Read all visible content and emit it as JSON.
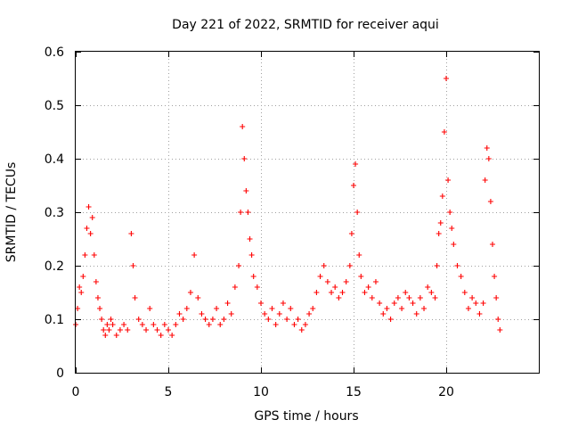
{
  "chart_data": {
    "type": "scatter",
    "title": "Day 221 of 2022, SRMTID for receiver aqui",
    "xlabel": "GPS time / hours",
    "ylabel": "SRMTID / TECUs",
    "xlim": [
      0,
      25
    ],
    "ylim": [
      0,
      0.6
    ],
    "x_ticks": [
      0,
      5,
      10,
      15,
      20
    ],
    "x_tick_labels": [
      "0",
      "5",
      "10",
      "15",
      "20"
    ],
    "y_ticks": [
      0,
      0.1,
      0.2,
      0.3,
      0.4,
      0.5,
      0.6
    ],
    "y_tick_labels": [
      "0",
      "0.1",
      "0.2",
      "0.3",
      "0.4",
      "0.5",
      "0.6"
    ],
    "grid": true,
    "marker": "plus",
    "color": "#ff0000",
    "series": [
      {
        "name": "SRMTID",
        "x": [
          0.0,
          0.1,
          0.2,
          0.3,
          0.4,
          0.5,
          0.6,
          0.7,
          0.8,
          0.9,
          1.0,
          1.1,
          1.2,
          1.3,
          1.4,
          1.5,
          1.6,
          1.7,
          1.8,
          1.9,
          2.0,
          2.2,
          2.4,
          2.6,
          2.8,
          3.0,
          3.1,
          3.2,
          3.4,
          3.6,
          3.8,
          4.0,
          4.2,
          4.4,
          4.6,
          4.8,
          5.0,
          5.2,
          5.4,
          5.6,
          5.8,
          6.0,
          6.2,
          6.4,
          6.6,
          6.8,
          7.0,
          7.2,
          7.4,
          7.6,
          7.8,
          8.0,
          8.2,
          8.4,
          8.6,
          8.8,
          8.9,
          9.0,
          9.1,
          9.2,
          9.3,
          9.4,
          9.5,
          9.6,
          9.8,
          10.0,
          10.2,
          10.4,
          10.6,
          10.8,
          11.0,
          11.2,
          11.4,
          11.6,
          11.8,
          12.0,
          12.2,
          12.4,
          12.6,
          12.8,
          13.0,
          13.2,
          13.4,
          13.6,
          13.8,
          14.0,
          14.2,
          14.4,
          14.6,
          14.8,
          14.9,
          15.0,
          15.1,
          15.2,
          15.3,
          15.4,
          15.6,
          15.8,
          16.0,
          16.2,
          16.4,
          16.6,
          16.8,
          17.0,
          17.2,
          17.4,
          17.6,
          17.8,
          18.0,
          18.2,
          18.4,
          18.6,
          18.8,
          19.0,
          19.2,
          19.4,
          19.5,
          19.6,
          19.7,
          19.8,
          19.9,
          20.0,
          20.1,
          20.2,
          20.3,
          20.4,
          20.6,
          20.8,
          21.0,
          21.2,
          21.4,
          21.6,
          21.8,
          22.0,
          22.1,
          22.2,
          22.3,
          22.4,
          22.5,
          22.6,
          22.7,
          22.8,
          22.9
        ],
        "y": [
          0.09,
          0.12,
          0.16,
          0.15,
          0.18,
          0.22,
          0.27,
          0.31,
          0.26,
          0.29,
          0.22,
          0.17,
          0.14,
          0.12,
          0.1,
          0.08,
          0.07,
          0.09,
          0.08,
          0.1,
          0.09,
          0.07,
          0.08,
          0.09,
          0.08,
          0.26,
          0.2,
          0.14,
          0.1,
          0.09,
          0.08,
          0.12,
          0.09,
          0.08,
          0.07,
          0.09,
          0.08,
          0.07,
          0.09,
          0.11,
          0.1,
          0.12,
          0.15,
          0.22,
          0.14,
          0.11,
          0.1,
          0.09,
          0.1,
          0.12,
          0.09,
          0.1,
          0.13,
          0.11,
          0.16,
          0.2,
          0.3,
          0.46,
          0.4,
          0.34,
          0.3,
          0.25,
          0.22,
          0.18,
          0.16,
          0.13,
          0.11,
          0.1,
          0.12,
          0.09,
          0.11,
          0.13,
          0.1,
          0.12,
          0.09,
          0.1,
          0.08,
          0.09,
          0.11,
          0.12,
          0.15,
          0.18,
          0.2,
          0.17,
          0.15,
          0.16,
          0.14,
          0.15,
          0.17,
          0.2,
          0.26,
          0.35,
          0.39,
          0.3,
          0.22,
          0.18,
          0.15,
          0.16,
          0.14,
          0.17,
          0.13,
          0.11,
          0.12,
          0.1,
          0.13,
          0.14,
          0.12,
          0.15,
          0.14,
          0.13,
          0.11,
          0.14,
          0.12,
          0.16,
          0.15,
          0.14,
          0.2,
          0.26,
          0.28,
          0.33,
          0.45,
          0.55,
          0.36,
          0.3,
          0.27,
          0.24,
          0.2,
          0.18,
          0.15,
          0.12,
          0.14,
          0.13,
          0.11,
          0.13,
          0.36,
          0.42,
          0.4,
          0.32,
          0.24,
          0.18,
          0.14,
          0.1,
          0.08
        ]
      }
    ]
  }
}
